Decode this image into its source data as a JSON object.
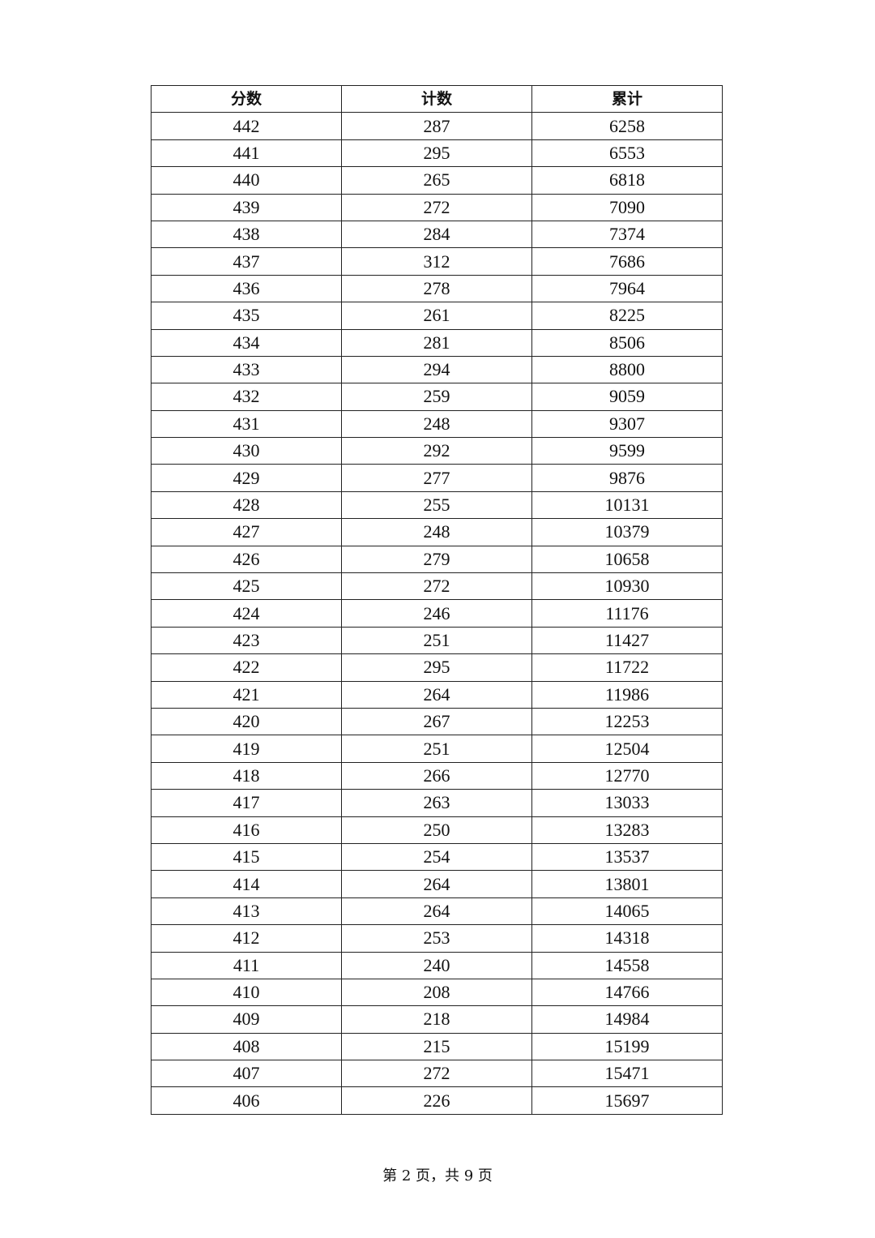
{
  "table": {
    "headers": [
      "分数",
      "计数",
      "累计"
    ],
    "rows": [
      [
        "442",
        "287",
        "6258"
      ],
      [
        "441",
        "295",
        "6553"
      ],
      [
        "440",
        "265",
        "6818"
      ],
      [
        "439",
        "272",
        "7090"
      ],
      [
        "438",
        "284",
        "7374"
      ],
      [
        "437",
        "312",
        "7686"
      ],
      [
        "436",
        "278",
        "7964"
      ],
      [
        "435",
        "261",
        "8225"
      ],
      [
        "434",
        "281",
        "8506"
      ],
      [
        "433",
        "294",
        "8800"
      ],
      [
        "432",
        "259",
        "9059"
      ],
      [
        "431",
        "248",
        "9307"
      ],
      [
        "430",
        "292",
        "9599"
      ],
      [
        "429",
        "277",
        "9876"
      ],
      [
        "428",
        "255",
        "10131"
      ],
      [
        "427",
        "248",
        "10379"
      ],
      [
        "426",
        "279",
        "10658"
      ],
      [
        "425",
        "272",
        "10930"
      ],
      [
        "424",
        "246",
        "11176"
      ],
      [
        "423",
        "251",
        "11427"
      ],
      [
        "422",
        "295",
        "11722"
      ],
      [
        "421",
        "264",
        "11986"
      ],
      [
        "420",
        "267",
        "12253"
      ],
      [
        "419",
        "251",
        "12504"
      ],
      [
        "418",
        "266",
        "12770"
      ],
      [
        "417",
        "263",
        "13033"
      ],
      [
        "416",
        "250",
        "13283"
      ],
      [
        "415",
        "254",
        "13537"
      ],
      [
        "414",
        "264",
        "13801"
      ],
      [
        "413",
        "264",
        "14065"
      ],
      [
        "412",
        "253",
        "14318"
      ],
      [
        "411",
        "240",
        "14558"
      ],
      [
        "410",
        "208",
        "14766"
      ],
      [
        "409",
        "218",
        "14984"
      ],
      [
        "408",
        "215",
        "15199"
      ],
      [
        "407",
        "272",
        "15471"
      ],
      [
        "406",
        "226",
        "15697"
      ]
    ]
  },
  "footer": "第 2 页，共 9 页"
}
